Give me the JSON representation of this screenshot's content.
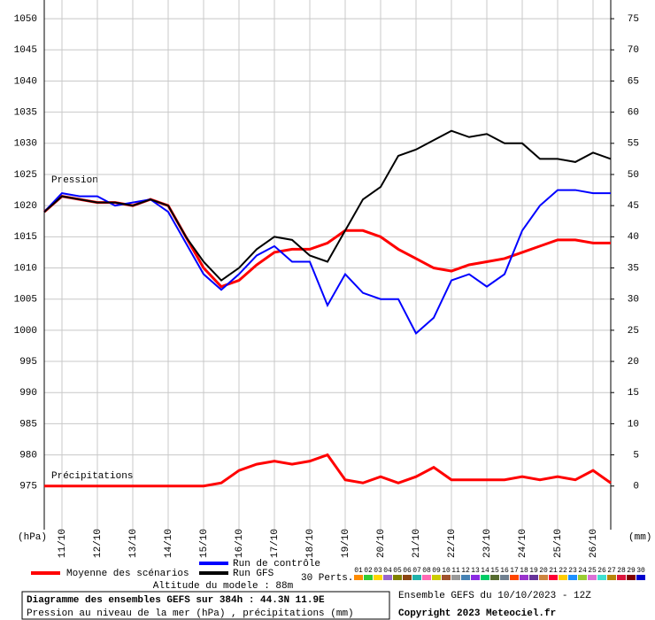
{
  "chart_data": {
    "type": "line",
    "title": "Diagramme des ensembles GEFS sur 384h : 44.3N 11.9E",
    "subtitle": "Pression au niveau de la mer (hPa) , précipitations (mm)",
    "run_label": "Ensemble GEFS du 10/10/2023 - 12Z",
    "copyright": "Copyright 2023 Meteociel.fr",
    "altitude": "Altitude du modele : 88m",
    "pressure_label": "Pression",
    "precip_label": "Précipitations",
    "y_unit": "(hPa)",
    "y2_unit": "(mm)",
    "perts_label": "30 Perts.",
    "grid": true,
    "x": [
      -12,
      0,
      12,
      24,
      36,
      48,
      60,
      72,
      84,
      96,
      108,
      120,
      132,
      144,
      156,
      168,
      180,
      192,
      204,
      216,
      228,
      240,
      252,
      264,
      276,
      288,
      300,
      312,
      324,
      336,
      348,
      360,
      372
    ],
    "xlim": [
      -12,
      372
    ],
    "xticks": [
      {
        "value": 0,
        "label": "11/10"
      },
      {
        "value": 24,
        "label": "12/10"
      },
      {
        "value": 48,
        "label": "13/10"
      },
      {
        "value": 72,
        "label": "14/10"
      },
      {
        "value": 96,
        "label": "15/10"
      },
      {
        "value": 120,
        "label": "16/10"
      },
      {
        "value": 144,
        "label": "17/10"
      },
      {
        "value": 168,
        "label": "18/10"
      },
      {
        "value": 192,
        "label": "19/10"
      },
      {
        "value": 216,
        "label": "20/10"
      },
      {
        "value": 240,
        "label": "21/10"
      },
      {
        "value": 264,
        "label": "22/10"
      },
      {
        "value": 288,
        "label": "23/10"
      },
      {
        "value": 312,
        "label": "24/10"
      },
      {
        "value": 336,
        "label": "25/10"
      },
      {
        "value": 360,
        "label": "26/10"
      }
    ],
    "ylim": [
      968,
      1053
    ],
    "yticks": [
      975,
      980,
      985,
      990,
      995,
      1000,
      1005,
      1010,
      1015,
      1020,
      1025,
      1030,
      1035,
      1040,
      1045,
      1050
    ],
    "y2lim": [
      -7,
      78
    ],
    "y2ticks": [
      0,
      5,
      10,
      15,
      20,
      25,
      30,
      35,
      40,
      45,
      50,
      55,
      60,
      65,
      70,
      75
    ],
    "series": [
      {
        "name": "Moyenne des scénarios",
        "color": "#ff0000",
        "width": 3,
        "values": [
          1019,
          1021.5,
          1021,
          1020.5,
          1020.5,
          1020,
          1021,
          1020,
          1015,
          1010,
          1007,
          1008,
          1010.5,
          1012.5,
          1013,
          1013,
          1014,
          1016,
          1016,
          1015,
          1013,
          1011.5,
          1010,
          1009.5,
          1010.5,
          1011,
          1011.5,
          1012.5,
          1013.5,
          1014.5,
          1014.5,
          1014,
          1014
        ]
      },
      {
        "name": "Run de contrôle",
        "color": "#0000ff",
        "width": 2,
        "values": [
          1019,
          1022,
          1021.5,
          1021.5,
          1020,
          1020.5,
          1021,
          1019,
          1014,
          1009,
          1006.5,
          1009,
          1012,
          1013.5,
          1011,
          1011,
          1004,
          1009,
          1006,
          1005,
          1005,
          999.5,
          1002,
          1008,
          1009,
          1007,
          1009,
          1016,
          1020,
          1022.5,
          1022.5,
          1022,
          1022
        ]
      },
      {
        "name": "Run GFS",
        "color": "#000000",
        "width": 2,
        "values": [
          1019,
          1021.5,
          1021,
          1020.5,
          1020.5,
          1020,
          1021,
          1020,
          1015,
          1011,
          1008,
          1010,
          1013,
          1015,
          1014.5,
          1012,
          1011,
          1016,
          1021,
          1023,
          1028,
          1029,
          1030.5,
          1032,
          1031,
          1031.5,
          1030,
          1030,
          1027.5,
          1027.5,
          1027,
          1028.5,
          1027.5
        ]
      },
      {
        "color": "#ff0000",
        "width": 3,
        "axis": "y2",
        "values": [
          0,
          0,
          0,
          0,
          0,
          0,
          0,
          0,
          0,
          0,
          0.5,
          2.5,
          3.5,
          4,
          3.5,
          4,
          5,
          1,
          0.5,
          1.5,
          0.5,
          1.5,
          3,
          1,
          1,
          1,
          1,
          1.5,
          1,
          1.5,
          1,
          2.5,
          0.5
        ]
      }
    ],
    "perturbations": [
      {
        "name": "01",
        "color": "#ff8c00"
      },
      {
        "name": "02",
        "color": "#33cc33"
      },
      {
        "name": "03",
        "color": "#ffd700"
      },
      {
        "name": "04",
        "color": "#9966cc"
      },
      {
        "name": "05",
        "color": "#808000"
      },
      {
        "name": "06",
        "color": "#8b4513"
      },
      {
        "name": "07",
        "color": "#20b2aa"
      },
      {
        "name": "08",
        "color": "#ff69b4"
      },
      {
        "name": "09",
        "color": "#cccc00"
      },
      {
        "name": "10",
        "color": "#a0522d"
      },
      {
        "name": "11",
        "color": "#999999"
      },
      {
        "name": "12",
        "color": "#4682b4"
      },
      {
        "name": "13",
        "color": "#8a2be2"
      },
      {
        "name": "14",
        "color": "#00cc66"
      },
      {
        "name": "15",
        "color": "#556b2f"
      },
      {
        "name": "16",
        "color": "#708090"
      },
      {
        "name": "17",
        "color": "#ff4500"
      },
      {
        "name": "18",
        "color": "#9932cc"
      },
      {
        "name": "19",
        "color": "#663399"
      },
      {
        "name": "20",
        "color": "#cd853f"
      },
      {
        "name": "21",
        "color": "#ff0033"
      },
      {
        "name": "22",
        "color": "#ffcc00"
      },
      {
        "name": "23",
        "color": "#1e90ff"
      },
      {
        "name": "24",
        "color": "#9acd32"
      },
      {
        "name": "25",
        "color": "#da70d6"
      },
      {
        "name": "26",
        "color": "#40e0d0"
      },
      {
        "name": "27",
        "color": "#b8860b"
      },
      {
        "name": "28",
        "color": "#dc143c"
      },
      {
        "name": "29",
        "color": "#800000"
      },
      {
        "name": "30",
        "color": "#0000cd"
      }
    ]
  }
}
